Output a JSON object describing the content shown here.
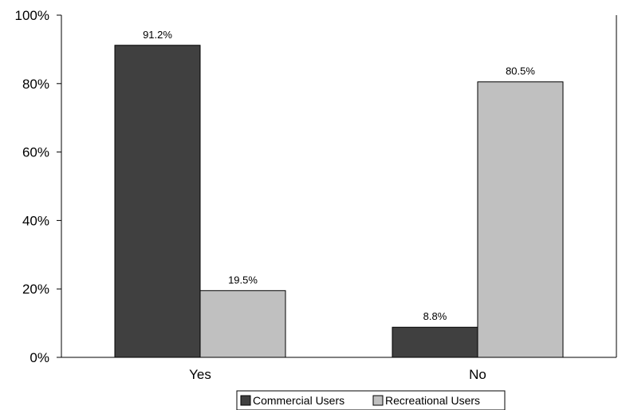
{
  "chart_data": {
    "type": "bar",
    "title": "",
    "categories": [
      "Yes",
      "No"
    ],
    "series": [
      {
        "name": "Commercial Users",
        "values": [
          91.2,
          8.8
        ],
        "labels": [
          "91.2%",
          "8.8%"
        ],
        "color": "#404040"
      },
      {
        "name": "Recreational Users",
        "values": [
          19.5,
          80.5
        ],
        "labels": [
          "19.5%",
          "80.5%"
        ],
        "color": "#c0c0c0"
      }
    ],
    "ylim": [
      0,
      100
    ],
    "yticks": [
      "0%",
      "20%",
      "40%",
      "60%",
      "80%",
      "100%"
    ],
    "xlabel": "",
    "ylabel": "",
    "grid": false,
    "legend_position": "bottom"
  }
}
